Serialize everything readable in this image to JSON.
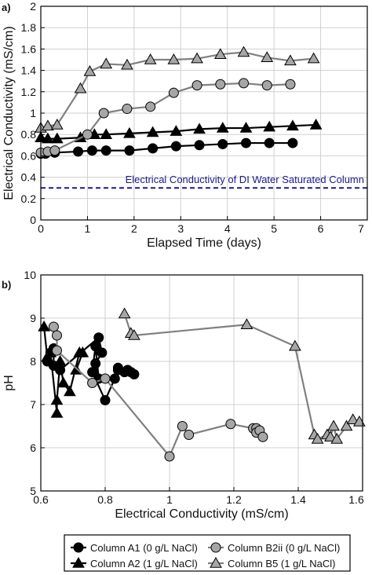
{
  "chart_data": [
    {
      "panel_label": "a)",
      "type": "line",
      "xlabel": "Elapsed Time (days)",
      "ylabel": "Electrical Conductivity (mS/cm)",
      "xlim": [
        0,
        7
      ],
      "ylim": [
        0,
        2
      ],
      "xticks": [
        "0",
        "1",
        "2",
        "3",
        "4",
        "5",
        "6",
        "7"
      ],
      "yticks": [
        "0",
        "0.2",
        "0.4",
        "0.6",
        "0.8",
        "1",
        "1.2",
        "1.4",
        "1.6",
        "1.8",
        "2"
      ],
      "grid": true,
      "series": [
        {
          "name": "Column A1 (0 g/L NaCl)",
          "marker": "circle",
          "fill": "#000000",
          "line_color": "#000000",
          "x": [
            0.0,
            0.1,
            0.3,
            0.8,
            1.1,
            1.4,
            1.9,
            2.4,
            2.9,
            3.4,
            3.9,
            4.4,
            4.9,
            5.4
          ],
          "y": [
            0.62,
            0.62,
            0.63,
            0.64,
            0.65,
            0.65,
            0.65,
            0.67,
            0.69,
            0.7,
            0.71,
            0.72,
            0.72,
            0.72
          ]
        },
        {
          "name": "Column A2 (1 g/L NaCl)",
          "marker": "triangle",
          "fill": "#000000",
          "line_color": "#000000",
          "x": [
            0.0,
            0.15,
            0.35,
            0.85,
            1.15,
            1.4,
            1.9,
            2.4,
            2.9,
            3.4,
            3.9,
            4.4,
            4.9,
            5.4,
            5.9
          ],
          "y": [
            0.77,
            0.76,
            0.76,
            0.77,
            0.8,
            0.8,
            0.81,
            0.82,
            0.83,
            0.85,
            0.86,
            0.86,
            0.87,
            0.88,
            0.89
          ]
        },
        {
          "name": "Column B2ii (0 g/L NaCl)",
          "marker": "circle",
          "fill": "#a6a6a6",
          "line_color": "#808080",
          "x": [
            0.0,
            0.15,
            0.3,
            1.0,
            1.35,
            1.85,
            2.35,
            2.85,
            3.35,
            3.85,
            4.35,
            4.85,
            5.35
          ],
          "y": [
            0.63,
            0.64,
            0.65,
            0.8,
            1.0,
            1.04,
            1.06,
            1.19,
            1.26,
            1.27,
            1.28,
            1.26,
            1.27
          ]
        },
        {
          "name": "Column B5 (1 g/L NaCl)",
          "marker": "triangle",
          "fill": "#a6a6a6",
          "line_color": "#808080",
          "x": [
            0.0,
            0.15,
            0.35,
            0.85,
            1.05,
            1.4,
            1.85,
            2.35,
            2.85,
            3.35,
            3.85,
            4.35,
            4.85,
            5.35,
            5.85
          ],
          "y": [
            0.86,
            0.88,
            0.89,
            1.23,
            1.39,
            1.46,
            1.45,
            1.5,
            1.5,
            1.51,
            1.55,
            1.57,
            1.52,
            1.49,
            1.51
          ]
        }
      ],
      "reference_line": {
        "y": 0.3,
        "label": "Electrical Conductivity of DI Water Saturated Column",
        "color": "#1a1a8c"
      }
    },
    {
      "panel_label": "b)",
      "type": "scatter",
      "xlabel": "Electrical Conductivity (mS/cm)",
      "ylabel": "pH",
      "xlim": [
        0.6,
        1.6
      ],
      "ylim": [
        5,
        10
      ],
      "xticks": [
        "0.6",
        "0.8",
        "1",
        "1.2",
        "1.4",
        "1.6"
      ],
      "yticks": [
        "5",
        "6",
        "7",
        "8",
        "9",
        "10"
      ],
      "grid": true,
      "series": [
        {
          "name": "Column A1 (0 g/L NaCl)",
          "marker": "circle",
          "fill": "#000000",
          "line_color": "#000000",
          "x": [
            0.62,
            0.63,
            0.64,
            0.64,
            0.66,
            0.78,
            0.79,
            0.77,
            0.78,
            0.77,
            0.76,
            0.8,
            0.83,
            0.84,
            0.84,
            0.86,
            0.87,
            0.88,
            0.89
          ],
          "y": [
            8.0,
            8.2,
            8.3,
            7.9,
            7.8,
            8.55,
            8.2,
            7.95,
            7.6,
            8.35,
            7.75,
            7.1,
            7.6,
            7.8,
            7.85,
            7.75,
            7.8,
            7.75,
            7.7
          ]
        },
        {
          "name": "Column A2 (1 g/L NaCl)",
          "marker": "triangle",
          "fill": "#000000",
          "line_color": "#000000",
          "x": [
            0.61,
            0.62,
            0.63,
            0.65,
            0.65,
            0.66,
            0.67,
            0.69,
            0.72,
            0.73,
            0.71
          ],
          "y": [
            8.8,
            8.1,
            8.2,
            6.8,
            7.1,
            8.0,
            7.5,
            7.3,
            8.2,
            8.2,
            7.8
          ]
        },
        {
          "name": "Column B2ii (0 g/L NaCl)",
          "marker": "circle",
          "fill": "#a6a6a6",
          "line_color": "#808080",
          "x": [
            0.64,
            0.65,
            0.65,
            0.76,
            0.8,
            1.0,
            1.04,
            1.06,
            1.19,
            1.26,
            1.27,
            1.27,
            1.28,
            1.29
          ],
          "y": [
            8.8,
            8.6,
            8.25,
            7.5,
            7.6,
            5.8,
            6.5,
            6.3,
            6.55,
            6.45,
            6.45,
            6.35,
            6.4,
            6.25
          ]
        },
        {
          "name": "Column B5 (1 g/L NaCl)",
          "marker": "triangle",
          "fill": "#a6a6a6",
          "line_color": "#808080",
          "x": [
            0.86,
            0.88,
            0.89,
            1.24,
            1.39,
            1.45,
            1.46,
            1.49,
            1.5,
            1.51,
            1.52,
            1.55,
            1.57,
            1.59
          ],
          "y": [
            9.1,
            8.65,
            8.6,
            8.85,
            8.35,
            6.3,
            6.2,
            6.3,
            6.25,
            6.5,
            6.2,
            6.5,
            6.65,
            6.6
          ]
        }
      ]
    }
  ],
  "legend": {
    "placement": "bottom",
    "items": [
      {
        "label": "Column A1 (0 g/L NaCl)",
        "marker": "circle",
        "fill": "#000000",
        "line_color": "#000000"
      },
      {
        "label": "Column B2ii (0 g/L NaCl)",
        "marker": "circle",
        "fill": "#a6a6a6",
        "line_color": "#808080"
      },
      {
        "label": "Column A2 (1 g/L NaCl)",
        "marker": "triangle",
        "fill": "#000000",
        "line_color": "#000000"
      },
      {
        "label": "Column B5 (1 g/L NaCl)",
        "marker": "triangle",
        "fill": "#a6a6a6",
        "line_color": "#808080"
      }
    ]
  }
}
